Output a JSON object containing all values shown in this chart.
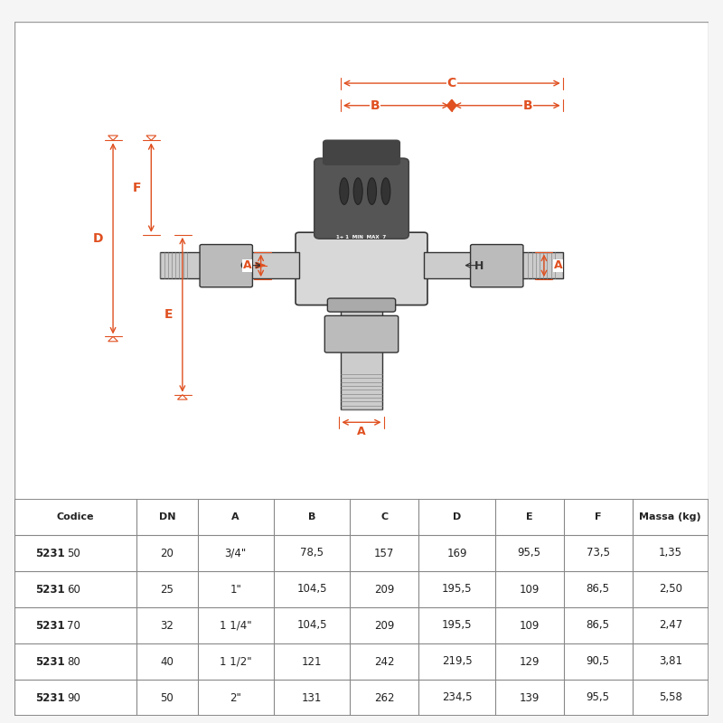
{
  "bg_color": "#f5f5f5",
  "diagram_bg": "#ffffff",
  "table_header": [
    "Codice",
    "DN",
    "A",
    "B",
    "C",
    "D",
    "E",
    "F",
    "Massa (kg)"
  ],
  "table_bold_prefix": [
    "5231",
    "5231",
    "5231",
    "5231",
    "5231"
  ],
  "table_suffix": [
    "50",
    "60",
    "70",
    "80",
    "90"
  ],
  "table_rows": [
    [
      "523150",
      "20",
      "3/4\"",
      "78,5",
      "157",
      "169",
      "95,5",
      "73,5",
      "1,35"
    ],
    [
      "523160",
      "25",
      "1\"",
      "104,5",
      "209",
      "195,5",
      "109",
      "86,5",
      "2,50"
    ],
    [
      "523170",
      "32",
      "1 1/4\"",
      "104,5",
      "209",
      "195,5",
      "109",
      "86,5",
      "2,47"
    ],
    [
      "523180",
      "40",
      "1 1/2\"",
      "121",
      "242",
      "219,5",
      "129",
      "90,5",
      "3,81"
    ],
    [
      "523190",
      "50",
      "2\"",
      "131",
      "262",
      "234,5",
      "139",
      "95,5",
      "5,58"
    ]
  ],
  "dim_labels": [
    "A",
    "B",
    "C",
    "D",
    "E",
    "F"
  ],
  "line_color": "#333333",
  "dim_color": "#e05020",
  "table_line_color": "#888888"
}
